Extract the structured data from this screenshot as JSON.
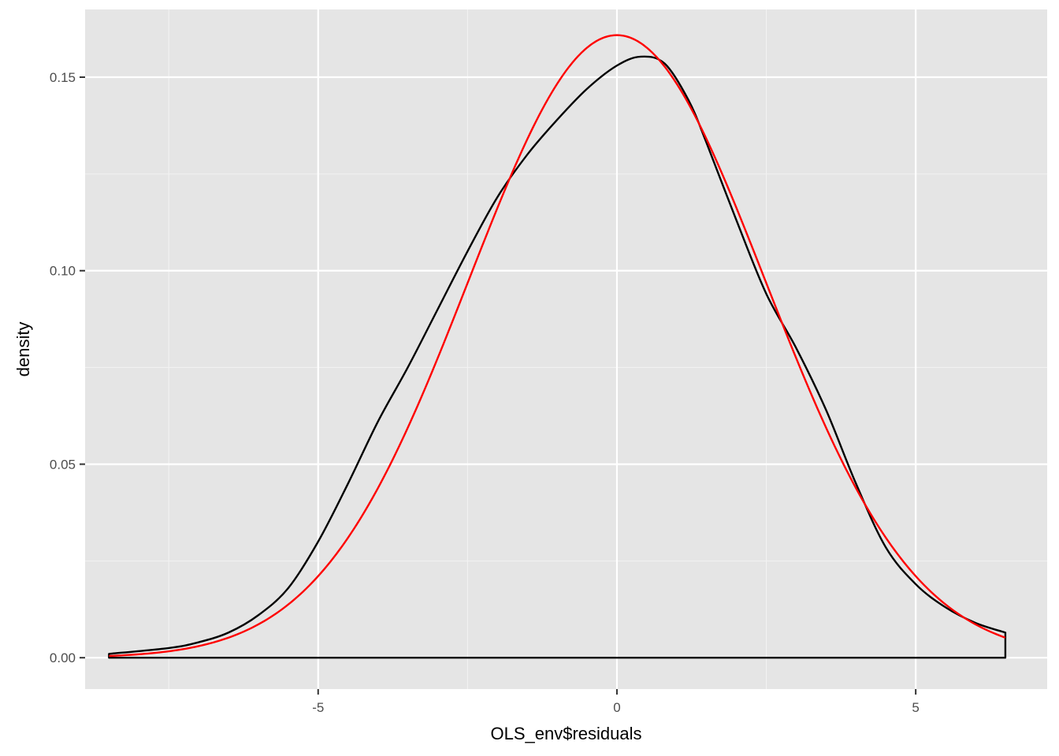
{
  "chart_data": {
    "type": "line",
    "title": "",
    "xlabel": "OLS_env$residuals",
    "ylabel": "density",
    "xlim": [
      -8.9,
      7.2
    ],
    "ylim": [
      -0.0081,
      0.1675
    ],
    "x_ticks": [
      -5,
      0,
      5
    ],
    "x_tick_labels": [
      "-5",
      "0",
      "5"
    ],
    "y_ticks": [
      0.0,
      0.05,
      0.1,
      0.15
    ],
    "y_tick_labels": [
      "0.00",
      "0.05",
      "0.10",
      "0.15"
    ],
    "grid": true,
    "legend": "none",
    "colors": {
      "panel_background": "#e5e5e5",
      "grid_major": "#ffffff",
      "grid_minor": "#f2f2f2",
      "density_line": "#000000",
      "normal_line": "#ff0000",
      "tick_label": "#4d4d4d",
      "tick_mark": "#333333"
    },
    "series": [
      {
        "kind": "density",
        "color": "#000000",
        "x": [
          -8.5,
          -7.5,
          -7.0,
          -6.5,
          -6.0,
          -5.5,
          -5.0,
          -4.5,
          -4.0,
          -3.5,
          -3.0,
          -2.5,
          -2.0,
          -1.5,
          -1.0,
          -0.5,
          0.0,
          0.4,
          0.8,
          1.2,
          1.5,
          2.0,
          2.5,
          3.0,
          3.5,
          4.0,
          4.5,
          5.0,
          5.5,
          6.0,
          6.5
        ],
        "y": [
          0.001,
          0.0025,
          0.004,
          0.0065,
          0.011,
          0.018,
          0.03,
          0.045,
          0.061,
          0.075,
          0.09,
          0.105,
          0.119,
          0.13,
          0.139,
          0.147,
          0.153,
          0.1553,
          0.1535,
          0.144,
          0.133,
          0.113,
          0.094,
          0.08,
          0.064,
          0.045,
          0.0285,
          0.019,
          0.013,
          0.009,
          0.0065
        ]
      },
      {
        "kind": "normal",
        "color": "#ff0000",
        "mean": 0,
        "sd": 2.48,
        "x_range": [
          -8.5,
          6.5
        ]
      }
    ]
  }
}
